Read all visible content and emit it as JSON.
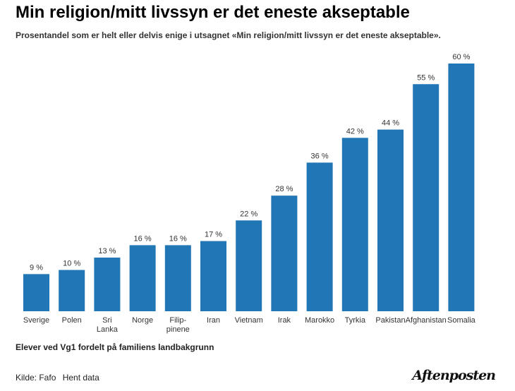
{
  "chart_data": {
    "type": "bar",
    "title": "Min religion/mitt livssyn er det eneste akseptable",
    "subtitle": "Prosentandel som er helt eller delvis enige i utsagnet «Min religion/mitt livssyn er det eneste akseptable».",
    "categories": [
      "Sverige",
      "Polen",
      "Sri Lanka",
      "Norge",
      "Filip-pinene",
      "Iran",
      "Vietnam",
      "Irak",
      "Marokko",
      "Tyrkia",
      "Pakistan",
      "Afghanistan",
      "Somalia"
    ],
    "category_lines": [
      [
        "Sverige"
      ],
      [
        "Polen"
      ],
      [
        "Sri",
        "Lanka"
      ],
      [
        "Norge"
      ],
      [
        "Filip-",
        "pinene"
      ],
      [
        "Iran"
      ],
      [
        "Vietnam"
      ],
      [
        "Irak"
      ],
      [
        "Marokko"
      ],
      [
        "Tyrkia"
      ],
      [
        "Pakistan"
      ],
      [
        "Afghanistan"
      ],
      [
        "Somalia"
      ]
    ],
    "values": [
      9,
      10,
      13,
      16,
      16,
      17,
      22,
      28,
      36,
      42,
      44,
      55,
      60
    ],
    "data_labels": [
      "9 %",
      "10 %",
      "13 %",
      "16 %",
      "16 %",
      "17 %",
      "22 %",
      "28 %",
      "36 %",
      "42 %",
      "44 %",
      "55 %",
      "60 %"
    ],
    "xlabel": "Elever ved Vg1 fordelt på familiens landbakgrunn",
    "ylabel": "",
    "ylim": [
      0,
      60
    ],
    "grid": false,
    "legend": "none",
    "bar_color": "#2176b5"
  },
  "footer": {
    "source": "Kilde: Fafo",
    "download_link": "Hent data",
    "logo": "Aftenposten"
  }
}
